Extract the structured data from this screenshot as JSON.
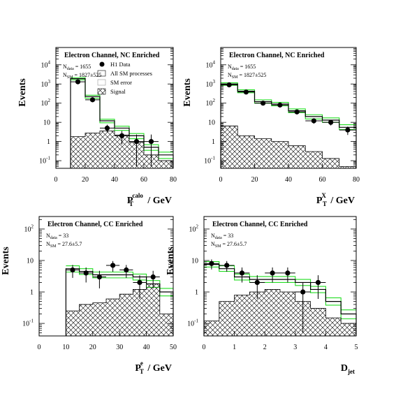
{
  "chart_data": [
    {
      "type": "histogram",
      "title": "Electron Channel, NC Enriched",
      "ylabel": "Events",
      "xlabel": {
        "main": "P",
        "sub": "T",
        "sup": "calo",
        "unit": " / GeV"
      },
      "yscale": "log",
      "ylim": [
        0.04,
        80000
      ],
      "yticks": [
        {
          "v": 0.1,
          "b": "10",
          "e": "-1"
        },
        {
          "v": 1,
          "b": "1",
          "e": ""
        },
        {
          "v": 10,
          "b": "10",
          "e": ""
        },
        {
          "v": 100,
          "b": "10",
          "e": "2"
        },
        {
          "v": 1000,
          "b": "10",
          "e": "3"
        },
        {
          "v": 10000,
          "b": "10",
          "e": "4"
        }
      ],
      "xlim": [
        0,
        80
      ],
      "xticks": [
        0,
        20,
        40,
        60,
        80
      ],
      "annotations": {
        "n_data": {
          "base": "N",
          "sub": "data",
          "value": " = 1655"
        },
        "n_sm": {
          "base": "N",
          "sub": "SM",
          "value": " = 1827±525"
        }
      },
      "legend": {
        "data": "H1 Data",
        "sm": "All SM processes",
        "err": "SM error",
        "signal": "Signal"
      },
      "bin_edges": [
        10,
        20,
        30,
        40,
        50,
        60,
        70,
        80
      ],
      "sm": [
        1900,
        220,
        12,
        5,
        2,
        0.5,
        0.2
      ],
      "sm_err_low": [
        1650,
        180,
        9.5,
        3.8,
        1.4,
        0.35,
        0.13
      ],
      "sm_err_high": [
        2150,
        260,
        14.5,
        6.3,
        2.6,
        0.68,
        0.28
      ],
      "signal": [
        1.8,
        2.8,
        3.6,
        2.2,
        0.9,
        0.2,
        0.1
      ],
      "data": [
        {
          "x": 15,
          "y": 1300,
          "lo": 1250,
          "hi": 1350
        },
        {
          "x": 25,
          "y": 150,
          "lo": 135,
          "hi": 165
        },
        {
          "x": 35,
          "y": 5,
          "lo": 3,
          "hi": 7.5
        },
        {
          "x": 45,
          "y": 2,
          "lo": 0.7,
          "hi": 3.5
        },
        {
          "x": 55,
          "y": 1,
          "lo": 0.05,
          "hi": 2.3
        },
        {
          "x": 65,
          "y": 1,
          "lo": 0.05,
          "hi": 2.3
        }
      ]
    },
    {
      "type": "histogram",
      "title": "Electron Channel, NC Enriched",
      "ylabel": "Events",
      "xlabel": {
        "main": "P",
        "sub": "T",
        "sup": "X",
        "unit": " / GeV"
      },
      "yscale": "log",
      "ylim": [
        0.04,
        80000
      ],
      "yticks": [
        {
          "v": 0.1,
          "b": "10",
          "e": "-1"
        },
        {
          "v": 1,
          "b": "1",
          "e": ""
        },
        {
          "v": 10,
          "b": "10",
          "e": ""
        },
        {
          "v": 100,
          "b": "10",
          "e": "2"
        },
        {
          "v": 1000,
          "b": "10",
          "e": "3"
        },
        {
          "v": 10000,
          "b": "10",
          "e": "4"
        }
      ],
      "xlim": [
        0,
        80
      ],
      "xticks": [
        0,
        20,
        40,
        60,
        80
      ],
      "annotations": {
        "n_data": {
          "base": "N",
          "sub": "data",
          "value": " = 1655"
        },
        "n_sm": {
          "base": "N",
          "sub": "SM",
          "value": " = 1827±525"
        }
      },
      "bin_edges": [
        0,
        10,
        20,
        30,
        40,
        50,
        60,
        70,
        80
      ],
      "sm": [
        1000,
        420,
        120,
        90,
        40,
        20,
        13,
        5.5
      ],
      "sm_err_low": [
        850,
        350,
        100,
        72,
        32,
        15,
        10,
        4.2
      ],
      "sm_err_high": [
        1150,
        500,
        150,
        110,
        50,
        25,
        17,
        7.5
      ],
      "signal": [
        6.5,
        2.0,
        1.4,
        1.0,
        0.6,
        0.3,
        0.13,
        0.05
      ],
      "data": [
        {
          "x": 5,
          "y": 900,
          "lo": 860,
          "hi": 940
        },
        {
          "x": 15,
          "y": 380,
          "lo": 355,
          "hi": 405
        },
        {
          "x": 25,
          "y": 100,
          "lo": 90,
          "hi": 110
        },
        {
          "x": 35,
          "y": 80,
          "lo": 71,
          "hi": 89
        },
        {
          "x": 45,
          "y": 35,
          "lo": 29,
          "hi": 41
        },
        {
          "x": 55,
          "y": 12,
          "lo": 8.6,
          "hi": 15.5
        },
        {
          "x": 65,
          "y": 10,
          "lo": 6.9,
          "hi": 13.2
        },
        {
          "x": 75,
          "y": 4,
          "lo": 2.2,
          "hi": 6
        }
      ]
    },
    {
      "type": "histogram",
      "title": "Electron Channel, CC Enriched",
      "ylabel": "Events",
      "xlabel": {
        "main": "P",
        "sub": "T",
        "sup": "e",
        "unit": " / GeV"
      },
      "yscale": "log",
      "ylim": [
        0.04,
        250
      ],
      "yticks": [
        {
          "v": 0.1,
          "b": "10",
          "e": "-1"
        },
        {
          "v": 1,
          "b": "1",
          "e": ""
        },
        {
          "v": 10,
          "b": "10",
          "e": ""
        },
        {
          "v": 100,
          "b": "10",
          "e": "2"
        }
      ],
      "xlim": [
        0,
        50
      ],
      "xticks": [
        0,
        10,
        20,
        30,
        40,
        50
      ],
      "annotations": {
        "n_data": {
          "base": "N",
          "sub": "data",
          "value": " = 33"
        },
        "n_sm": {
          "base": "N",
          "sub": "SM",
          "value": " = 27.6±5.7"
        }
      },
      "bin_edges": [
        10,
        15,
        20,
        25,
        30,
        35,
        40,
        45,
        50
      ],
      "sm": [
        5.5,
        4.5,
        3.5,
        3.5,
        3.5,
        3.0,
        1.8,
        1.0
      ],
      "sm_err_low": [
        4.3,
        3.6,
        2.8,
        2.8,
        2.8,
        2.4,
        1.4,
        0.75
      ],
      "sm_err_high": [
        6.8,
        5.5,
        4.3,
        4.3,
        4.3,
        3.7,
        2.3,
        1.3
      ],
      "signal": [
        0.25,
        0.4,
        0.45,
        0.6,
        0.85,
        1.2,
        1.8,
        0.2
      ],
      "data": [
        {
          "x": 12.5,
          "y": 5,
          "lo": 2.8,
          "hi": 7.2
        },
        {
          "x": 17.5,
          "y": 4,
          "lo": 2.0,
          "hi": 6.0
        },
        {
          "x": 22.5,
          "y": 3,
          "lo": 1.3,
          "hi": 4.7
        },
        {
          "x": 27.5,
          "y": 7,
          "lo": 4.4,
          "hi": 9.6
        },
        {
          "x": 32.5,
          "y": 5,
          "lo": 2.8,
          "hi": 7.2
        },
        {
          "x": 37.5,
          "y": 2,
          "lo": 0.6,
          "hi": 3.4
        },
        {
          "x": 42.5,
          "y": 3,
          "lo": 1.3,
          "hi": 4.7
        }
      ]
    },
    {
      "type": "histogram",
      "title": "Electron Channel, CC Enriched",
      "ylabel": "Events",
      "xlabel": {
        "main": "D",
        "sub": "jet",
        "sup": "",
        "unit": ""
      },
      "yscale": "log",
      "ylim": [
        0.04,
        250
      ],
      "yticks": [
        {
          "v": 0.1,
          "b": "10",
          "e": "-1"
        },
        {
          "v": 1,
          "b": "1",
          "e": ""
        },
        {
          "v": 10,
          "b": "10",
          "e": ""
        },
        {
          "v": 100,
          "b": "10",
          "e": "2"
        }
      ],
      "xlim": [
        0,
        5
      ],
      "xticks": [
        0,
        1,
        2,
        3,
        4,
        5
      ],
      "annotations": {
        "n_data": {
          "base": "N",
          "sub": "data",
          "value": " = 33"
        },
        "n_sm": {
          "base": "N",
          "sub": "SM",
          "value": " = 27.6±5.7"
        }
      },
      "bin_edges": [
        0,
        0.5,
        1.0,
        1.5,
        2.0,
        2.5,
        3.0,
        3.5,
        4.0,
        4.5,
        5.0
      ],
      "sm": [
        7.5,
        5.5,
        3.0,
        2.5,
        2.5,
        2.5,
        2.0,
        1.2,
        0.5,
        0.2
      ],
      "sm_err_low": [
        6.2,
        4.5,
        2.4,
        2.0,
        2.0,
        2.0,
        1.6,
        0.95,
        0.38,
        0.14
      ],
      "sm_err_high": [
        9.2,
        6.8,
        3.7,
        3.1,
        3.1,
        3.1,
        2.5,
        1.5,
        0.65,
        0.27
      ],
      "signal": [
        0.12,
        0.5,
        0.8,
        1.0,
        1.2,
        1.0,
        0.5,
        0.3,
        0.15,
        0.1
      ],
      "data": [
        {
          "x": 0.25,
          "y": 8,
          "lo": 5.2,
          "hi": 10.8
        },
        {
          "x": 0.75,
          "y": 7,
          "lo": 4.4,
          "hi": 9.6
        },
        {
          "x": 1.25,
          "y": 4,
          "lo": 2.0,
          "hi": 6.0
        },
        {
          "x": 1.75,
          "y": 2,
          "lo": 0.6,
          "hi": 3.4
        },
        {
          "x": 2.25,
          "y": 4,
          "lo": 2.0,
          "hi": 6.0
        },
        {
          "x": 2.75,
          "y": 4,
          "lo": 2.0,
          "hi": 6.0
        },
        {
          "x": 3.25,
          "y": 1,
          "lo": 0.05,
          "hi": 2.0
        },
        {
          "x": 3.75,
          "y": 2,
          "lo": 0.6,
          "hi": 3.4
        }
      ]
    }
  ],
  "colors": {
    "sm_line": "#000000",
    "err_band": "#22dd22",
    "signal": "#000000",
    "data": "#000000"
  }
}
